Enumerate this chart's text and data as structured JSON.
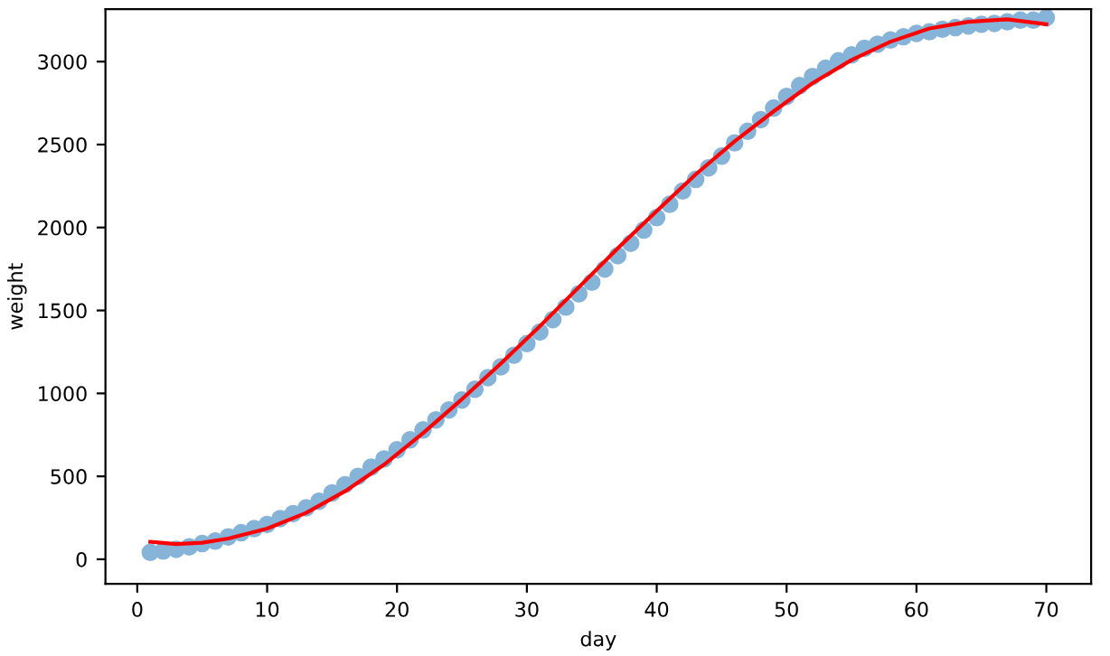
{
  "chart_data": {
    "type": "scatter",
    "xlabel": "day",
    "ylabel": "weight",
    "xlim": [
      -2.45,
      73.45
    ],
    "ylim": [
      -148,
      3316
    ],
    "xticks": [
      0,
      10,
      20,
      30,
      40,
      50,
      60,
      70
    ],
    "yticks": [
      0,
      500,
      1000,
      1500,
      2000,
      2500,
      3000
    ],
    "grid": false,
    "series": [
      {
        "color": "#86b4d8",
        "marker": "circle",
        "x": [
          1,
          2,
          3,
          4,
          5,
          6,
          7,
          8,
          9,
          10,
          11,
          12,
          13,
          14,
          15,
          16,
          17,
          18,
          19,
          20,
          21,
          22,
          23,
          24,
          25,
          26,
          27,
          28,
          29,
          30,
          31,
          32,
          33,
          34,
          35,
          36,
          37,
          38,
          39,
          40,
          41,
          42,
          43,
          44,
          45,
          46,
          47,
          48,
          49,
          50,
          51,
          52,
          53,
          54,
          55,
          56,
          57,
          58,
          59,
          60,
          61,
          62,
          63,
          64,
          65,
          66,
          67,
          68,
          69,
          70
        ],
        "values": [
          42,
          50,
          60,
          75,
          95,
          110,
          135,
          160,
          185,
          210,
          245,
          275,
          310,
          350,
          400,
          450,
          500,
          555,
          605,
          660,
          720,
          780,
          840,
          900,
          960,
          1025,
          1095,
          1160,
          1230,
          1300,
          1370,
          1445,
          1520,
          1600,
          1670,
          1750,
          1830,
          1905,
          1985,
          2060,
          2140,
          2220,
          2290,
          2360,
          2430,
          2510,
          2580,
          2650,
          2720,
          2790,
          2855,
          2910,
          2960,
          3005,
          3040,
          3080,
          3105,
          3130,
          3150,
          3170,
          3180,
          3195,
          3205,
          3215,
          3225,
          3230,
          3240,
          3250,
          3250,
          3265
        ]
      },
      {
        "type": "line",
        "color": "#ff0000",
        "marker": "none",
        "line_style": "solid",
        "x": [
          1,
          3,
          5,
          7,
          10,
          13,
          16,
          19,
          22,
          25,
          28,
          31,
          34,
          37,
          40,
          43,
          46,
          49,
          52,
          55,
          58,
          61,
          64,
          67,
          70
        ],
        "values": [
          105,
          92,
          100,
          125,
          185,
          280,
          410,
          570,
          760,
          965,
          1180,
          1405,
          1640,
          1875,
          2100,
          2320,
          2520,
          2700,
          2870,
          3010,
          3120,
          3200,
          3240,
          3255,
          3225
        ]
      }
    ]
  }
}
